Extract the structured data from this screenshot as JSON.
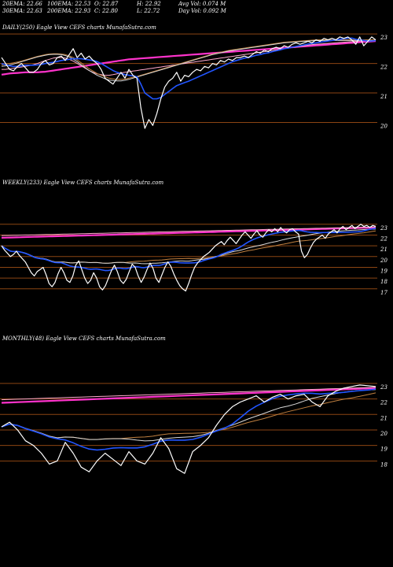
{
  "header": {
    "row1": [
      {
        "key": "ema20",
        "text": "20EMA: 22.66"
      },
      {
        "key": "ema100",
        "text": "100EMA: 22.53"
      },
      {
        "key": "open",
        "text": "O: 22.87"
      },
      {
        "key": "high",
        "text": "H: 22.92"
      },
      {
        "key": "avgvol",
        "text": "Avg Vol: 0.074  M"
      }
    ],
    "row2": [
      {
        "key": "ema30",
        "text": "30EMA: 22.63"
      },
      {
        "key": "ema200",
        "text": "200EMA: 22.93"
      },
      {
        "key": "close",
        "text": "C: 22.80"
      },
      {
        "key": "low",
        "text": "L: 22.72"
      },
      {
        "key": "dayvol",
        "text": "Day Vol: 0.092  M"
      }
    ]
  },
  "colors": {
    "background": "#000000",
    "price": "#ffffff",
    "gridline": "#8b4513",
    "ema_blue": "#2255ff",
    "ema_magenta": "#ff33cc",
    "ema_pink": "#ffaacc",
    "ema_brown": "#c08040",
    "ema_light": "#d8d8d8"
  },
  "chart_data": [
    {
      "type": "line",
      "title": "DAILY(250) Eagle  View  CEFS charts MunafaSutra.com",
      "yticks": [
        23,
        22,
        21,
        20
      ],
      "ylim": [
        19.4,
        23.35
      ],
      "price": [
        22.2,
        22.0,
        21.8,
        21.75,
        21.9,
        22.0,
        21.85,
        21.7,
        21.7,
        21.8,
        22.0,
        22.1,
        21.95,
        22.0,
        22.2,
        22.25,
        22.1,
        22.3,
        22.5,
        22.2,
        22.35,
        22.15,
        22.25,
        22.1,
        22.0,
        21.8,
        21.5,
        21.4,
        21.3,
        21.5,
        21.7,
        21.5,
        21.8,
        21.6,
        21.5,
        20.5,
        19.8,
        20.1,
        19.9,
        20.3,
        20.8,
        21.2,
        21.4,
        21.5,
        21.7,
        21.4,
        21.6,
        21.55,
        21.7,
        21.8,
        21.75,
        21.9,
        21.85,
        22.0,
        21.95,
        22.1,
        22.05,
        22.15,
        22.1,
        22.2,
        22.2,
        22.25,
        22.2,
        22.3,
        22.4,
        22.35,
        22.45,
        22.4,
        22.5,
        22.55,
        22.5,
        22.6,
        22.55,
        22.65,
        22.7,
        22.65,
        22.7,
        22.75,
        22.7,
        22.8,
        22.75,
        22.85,
        22.8,
        22.85,
        22.8,
        22.9,
        22.85,
        22.9,
        22.8,
        22.65,
        22.9,
        22.6,
        22.75,
        22.9,
        22.8
      ],
      "series": [
        {
          "key": "s1",
          "color": "#ff33cc",
          "width": 2.2,
          "values": [
            21.62,
            21.64,
            21.66,
            21.67,
            21.68,
            21.69,
            21.7,
            21.7,
            21.7,
            21.7,
            21.71,
            21.72,
            21.74,
            21.76,
            21.78,
            21.8,
            21.82,
            21.84,
            21.86,
            21.88,
            21.9,
            21.92,
            21.94,
            21.96,
            21.98,
            22.0,
            22.02,
            22.04,
            22.06,
            22.08,
            22.1,
            22.12,
            22.14,
            22.15,
            22.16,
            22.17,
            22.18,
            22.19,
            22.2,
            22.21,
            22.22,
            22.23,
            22.24,
            22.25,
            22.26,
            22.27,
            22.28,
            22.29,
            22.3,
            22.31,
            22.32,
            22.33,
            22.34,
            22.35,
            22.36,
            22.37,
            22.38,
            22.39,
            22.4,
            22.41,
            22.42,
            22.43,
            22.44,
            22.45,
            22.46,
            22.47,
            22.48,
            22.49,
            22.5,
            22.51,
            22.52,
            22.53,
            22.54,
            22.55,
            22.56,
            22.57,
            22.58,
            22.59,
            22.6,
            22.61,
            22.62,
            22.63,
            22.64,
            22.65,
            22.66,
            22.67,
            22.68,
            22.69,
            22.7,
            22.71,
            22.72,
            22.73,
            22.74,
            22.75,
            22.76
          ]
        },
        {
          "key": "s2",
          "color": "#ffaacc",
          "width": 1,
          "values": [
            21.8,
            21.8,
            21.82,
            21.84,
            21.86,
            21.88,
            21.9,
            21.93,
            21.96,
            22.0,
            22.05,
            22.1,
            22.14,
            22.18,
            22.2,
            22.2,
            22.18,
            22.14,
            22.08,
            22.0,
            21.92,
            21.84,
            21.76,
            21.7,
            21.65,
            21.62,
            21.6,
            21.6,
            21.62,
            21.65,
            21.68,
            21.7,
            21.72,
            21.74,
            21.76,
            21.78,
            21.8,
            21.82,
            21.84,
            21.86,
            21.88,
            21.9,
            21.92,
            21.94,
            21.96,
            21.98,
            22.0,
            22.02,
            22.04,
            22.06,
            22.08,
            22.1,
            22.12,
            22.14,
            22.16,
            22.18,
            22.2,
            22.22,
            22.24,
            22.26,
            22.28,
            22.3,
            22.32,
            22.34,
            22.36,
            22.38,
            22.4,
            22.42,
            22.44,
            22.46,
            22.48,
            22.5,
            22.52,
            22.54,
            22.56,
            22.58,
            22.6,
            22.62,
            22.64,
            22.65,
            22.66,
            22.67,
            22.68,
            22.69,
            22.7,
            22.71,
            22.72,
            22.73,
            22.74,
            22.75,
            22.76,
            22.77,
            22.78,
            22.79,
            22.8
          ]
        },
        {
          "key": "s3",
          "color": "#c08040",
          "width": 1,
          "values": [
            21.95,
            21.98,
            22.0,
            22.02,
            22.05,
            22.08,
            22.12,
            22.16,
            22.2,
            22.24,
            22.27,
            22.3,
            22.32,
            22.33,
            22.33,
            22.32,
            22.3,
            22.26,
            22.2,
            22.12,
            22.02,
            21.92,
            21.82,
            21.74,
            21.66,
            21.6,
            21.55,
            21.5,
            21.48,
            21.46,
            21.46,
            21.47,
            21.5,
            21.53,
            21.56,
            21.6,
            21.64,
            21.68,
            21.72,
            21.76,
            21.8,
            21.84,
            21.88,
            21.92,
            21.96,
            22.0,
            22.04,
            22.08,
            22.12,
            22.16,
            22.2,
            22.24,
            22.28,
            22.32,
            22.35,
            22.38,
            22.41,
            22.44,
            22.46,
            22.48,
            22.5,
            22.52,
            22.54,
            22.56,
            22.58,
            22.6,
            22.62,
            22.64,
            22.66,
            22.68,
            22.7,
            22.72,
            22.73,
            22.74,
            22.75,
            22.76,
            22.77,
            22.78,
            22.79,
            22.8,
            22.8,
            22.8,
            22.8,
            22.8,
            22.8,
            22.8,
            22.8,
            22.8,
            22.8,
            22.8,
            22.8,
            22.8,
            22.8,
            22.8,
            22.8
          ]
        },
        {
          "key": "s4",
          "color": "#d8d8d8",
          "width": 1,
          "values": [
            21.9,
            21.92,
            21.95,
            21.98,
            22.02,
            22.06,
            22.1,
            22.14,
            22.18,
            22.22,
            22.25,
            22.28,
            22.3,
            22.31,
            22.31,
            22.3,
            22.27,
            22.22,
            22.15,
            22.06,
            21.96,
            21.86,
            21.76,
            21.68,
            21.6,
            21.54,
            21.48,
            21.44,
            21.42,
            21.41,
            21.41,
            21.43,
            21.46,
            21.5,
            21.54,
            21.58,
            21.62,
            21.66,
            21.7,
            21.74,
            21.78,
            21.82,
            21.86,
            21.9,
            21.94,
            21.98,
            22.02,
            22.06,
            22.1,
            22.14,
            22.18,
            22.22,
            22.26,
            22.3,
            22.33,
            22.36,
            22.39,
            22.42,
            22.44,
            22.46,
            22.48,
            22.5,
            22.52,
            22.54,
            22.56,
            22.58,
            22.6,
            22.62,
            22.64,
            22.66,
            22.68,
            22.7,
            22.71,
            22.72,
            22.73,
            22.74,
            22.75,
            22.76,
            22.77,
            22.78,
            22.78,
            22.78,
            22.78,
            22.78,
            22.78,
            22.78,
            22.78,
            22.78,
            22.78,
            22.78,
            22.78,
            22.78,
            22.78,
            22.78,
            22.78
          ]
        },
        {
          "key": "s5",
          "color": "#2255ff",
          "width": 1.6,
          "values": [
            22.0,
            21.96,
            21.92,
            21.9,
            21.9,
            21.92,
            21.94,
            21.94,
            21.94,
            21.95,
            21.97,
            22.0,
            22.02,
            22.04,
            22.07,
            22.1,
            22.12,
            22.14,
            22.16,
            22.16,
            22.16,
            22.14,
            22.12,
            22.1,
            22.06,
            22.0,
            21.92,
            21.84,
            21.76,
            21.7,
            21.66,
            21.62,
            21.6,
            21.58,
            21.55,
            21.3,
            21.0,
            20.9,
            20.8,
            20.8,
            20.85,
            20.95,
            21.05,
            21.15,
            21.25,
            21.3,
            21.35,
            21.4,
            21.46,
            21.52,
            21.58,
            21.64,
            21.7,
            21.76,
            21.82,
            21.88,
            21.94,
            22.0,
            22.06,
            22.1,
            22.14,
            22.18,
            22.2,
            22.24,
            22.28,
            22.3,
            22.34,
            22.36,
            22.4,
            22.43,
            22.46,
            22.5,
            22.52,
            22.55,
            22.58,
            22.6,
            22.63,
            22.66,
            22.68,
            22.7,
            22.72,
            22.74,
            22.76,
            22.78,
            22.8,
            22.82,
            22.84,
            22.86,
            22.86,
            22.82,
            22.8,
            22.78,
            22.76,
            22.76,
            22.78
          ]
        }
      ]
    },
    {
      "type": "line",
      "title": "WEEKLY(233) Eagle  View  CEFS charts MunafaSutra.com",
      "yticks": [
        23,
        22,
        21,
        20,
        19,
        18,
        17
      ],
      "ylim": [
        16.4,
        23.35
      ],
      "price": [
        21.0,
        20.6,
        20.3,
        20.0,
        20.2,
        20.5,
        20.1,
        19.8,
        19.5,
        19.0,
        18.5,
        18.2,
        18.6,
        18.8,
        19.0,
        18.3,
        17.5,
        17.2,
        17.6,
        18.4,
        19.0,
        18.5,
        17.8,
        17.6,
        18.2,
        19.2,
        19.6,
        18.8,
        18.0,
        17.5,
        17.8,
        18.5,
        18.0,
        17.2,
        16.9,
        17.3,
        18.0,
        18.7,
        19.2,
        18.6,
        17.8,
        17.5,
        17.9,
        18.6,
        19.3,
        19.0,
        18.2,
        17.6,
        18.1,
        18.8,
        19.4,
        18.9,
        18.0,
        17.6,
        18.3,
        19.0,
        19.5,
        19.1,
        18.4,
        17.8,
        17.3,
        17.0,
        16.8,
        17.5,
        18.3,
        19.0,
        19.4,
        19.7,
        20.0,
        20.2,
        20.4,
        20.7,
        21.0,
        21.2,
        21.4,
        21.1,
        21.5,
        21.8,
        21.5,
        21.2,
        21.6,
        22.0,
        22.3,
        22.0,
        21.7,
        22.1,
        22.4,
        22.0,
        21.8,
        22.2,
        22.5,
        22.3,
        22.6,
        22.3,
        22.7,
        22.4,
        22.2,
        22.5,
        22.6,
        22.3,
        22.1,
        20.5,
        19.9,
        20.2,
        20.8,
        21.3,
        21.6,
        21.8,
        22.0,
        21.7,
        22.1,
        22.3,
        22.5,
        22.2,
        22.6,
        22.8,
        22.5,
        22.7,
        22.9,
        22.6,
        22.8,
        23.0,
        22.8,
        22.9,
        22.7,
        22.9,
        22.8
      ]
    },
    {
      "type": "line",
      "title": "MONTHLY(48) Eagle  View  CEFS charts MunafaSutra.com",
      "yticks": [
        23,
        22,
        21,
        20,
        19,
        18
      ],
      "ylim": [
        17.0,
        23.35
      ],
      "price": [
        20.2,
        20.5,
        20.0,
        19.3,
        19.0,
        18.5,
        17.8,
        18.0,
        19.2,
        18.5,
        17.6,
        17.3,
        18.0,
        18.5,
        18.1,
        17.7,
        18.6,
        18.0,
        17.8,
        18.5,
        19.5,
        18.8,
        17.5,
        17.2,
        18.6,
        19.0,
        19.5,
        20.3,
        21.0,
        21.5,
        21.8,
        22.0,
        22.2,
        21.8,
        22.1,
        22.3,
        22.0,
        22.2,
        22.3,
        21.8,
        21.5,
        22.2,
        22.5,
        22.7,
        22.8,
        22.9,
        22.85,
        22.8
      ]
    }
  ]
}
